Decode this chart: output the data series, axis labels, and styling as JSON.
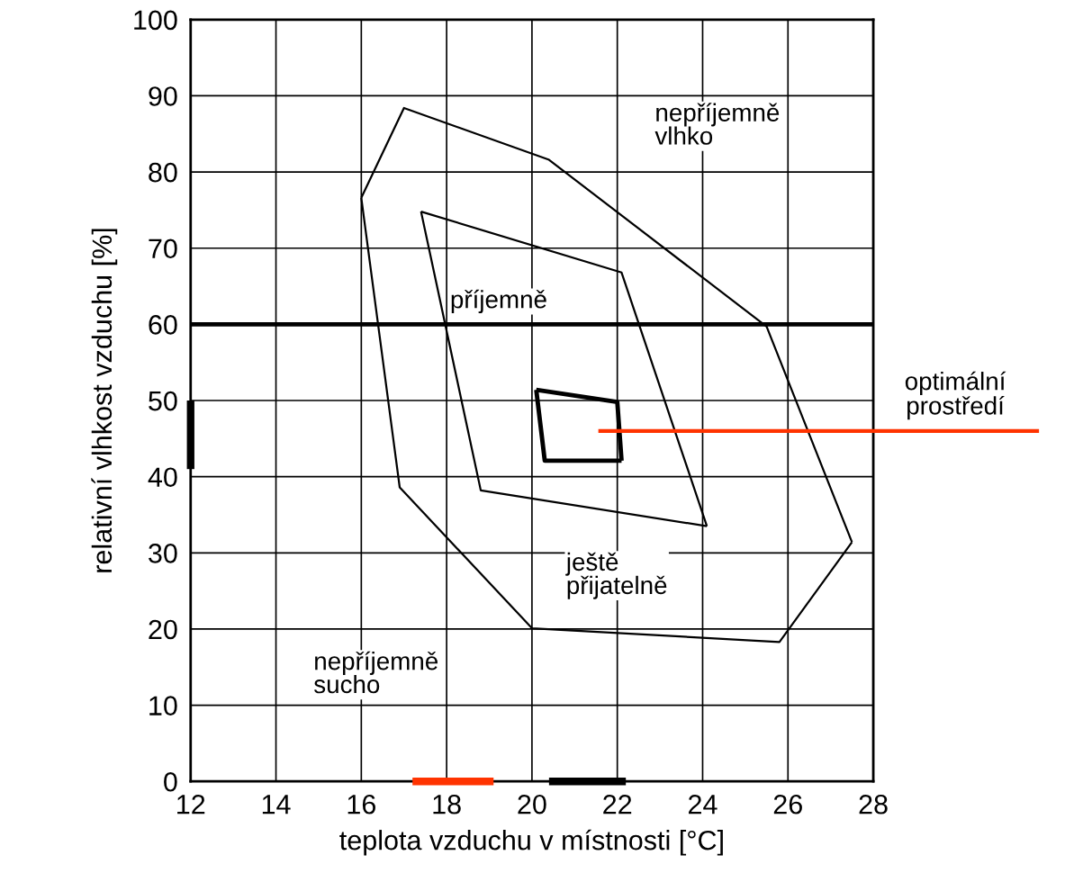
{
  "chart_data": {
    "type": "line",
    "xlabel": "teplota vzduchu v místnosti [°C]",
    "ylabel": "relativní vlhkost vzduchu [%]",
    "xlim": [
      12,
      28
    ],
    "ylim": [
      0,
      100
    ],
    "xticks": [
      12,
      14,
      16,
      18,
      20,
      22,
      24,
      26,
      28
    ],
    "yticks": [
      0,
      10,
      20,
      30,
      40,
      50,
      60,
      70,
      80,
      90,
      100
    ],
    "grid": true,
    "marker": "none",
    "line_style": "solid",
    "series": [
      {
        "color": "#000000",
        "x": [
          16.0,
          17.0,
          20.4,
          25.5,
          27.5
        ],
        "values": [
          76.6,
          88.4,
          81.6,
          59.7,
          31.4
        ]
      },
      {
        "color": "#000000",
        "x": [
          16.0,
          16.9,
          20.0,
          25.8,
          27.5
        ],
        "values": [
          76.6,
          38.6,
          20.1,
          18.3,
          31.4
        ]
      },
      {
        "color": "#000000",
        "x": [
          17.4,
          22.1,
          24.1
        ],
        "values": [
          74.8,
          66.8,
          33.5
        ]
      },
      {
        "color": "#000000",
        "x": [
          17.4,
          18.8,
          24.1
        ],
        "values": [
          74.8,
          38.2,
          33.5
        ]
      },
      {
        "color": "#000000",
        "x": [
          20.1,
          22.0,
          22.1
        ],
        "values": [
          51.4,
          49.8,
          42.1
        ]
      },
      {
        "color": "#000000",
        "x": [
          20.1,
          20.3,
          22.1
        ],
        "values": [
          51.4,
          42.1,
          42.1
        ]
      },
      {
        "color": "#000000",
        "x": [
          20.4,
          22.2
        ],
        "values": [
          0,
          0
        ]
      },
      {
        "color": "#ff3300",
        "x": [
          17.2,
          19.1
        ],
        "values": [
          0,
          0
        ]
      },
      {
        "color": "#000000",
        "x": [
          12,
          12
        ],
        "values": [
          41,
          50
        ]
      }
    ],
    "ref_lines": [
      {
        "axis": "y",
        "value": 60,
        "color": "#000000"
      },
      {
        "axis": "y",
        "value": 46,
        "color": "#ff3300",
        "label": "optimální\nprostředí"
      }
    ],
    "annotations": [
      "nepříjemně\nvlhko",
      "příjemně",
      "ještě\npřijatelně",
      "nepříjemně\nsucho"
    ]
  }
}
